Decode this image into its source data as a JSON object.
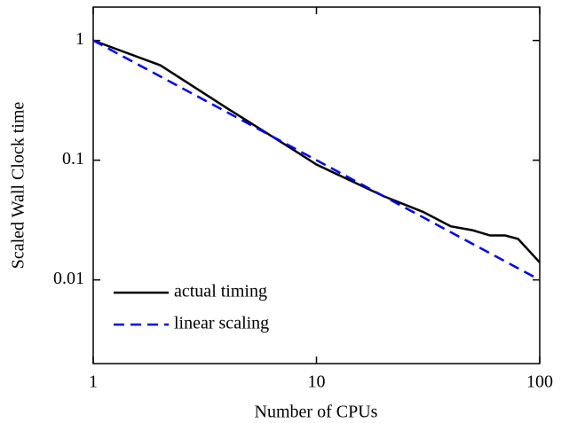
{
  "chart_data": {
    "type": "line",
    "xlabel": "Number of CPUs",
    "ylabel": "Scaled Wall Clock time",
    "xscale": "log",
    "yscale": "log",
    "xlim": [
      1,
      100
    ],
    "ylim": [
      0.002,
      1.9
    ],
    "xticks": [
      1,
      10,
      100
    ],
    "yticks": [
      0.01,
      0.1,
      1
    ],
    "legend": "lower left",
    "series": [
      {
        "name": "actual timing",
        "color": "#000000",
        "dash": "solid",
        "x": [
          1,
          2,
          4,
          8,
          10,
          20,
          30,
          40,
          50,
          60,
          70,
          80,
          100
        ],
        "values": [
          1,
          0.62,
          0.27,
          0.12,
          0.092,
          0.05,
          0.037,
          0.028,
          0.026,
          0.0235,
          0.0235,
          0.022,
          0.014
        ]
      },
      {
        "name": "linear scaling",
        "color": "#0000ee",
        "dash": "dashed",
        "x": [
          1,
          100
        ],
        "values": [
          1,
          0.01
        ]
      }
    ]
  }
}
